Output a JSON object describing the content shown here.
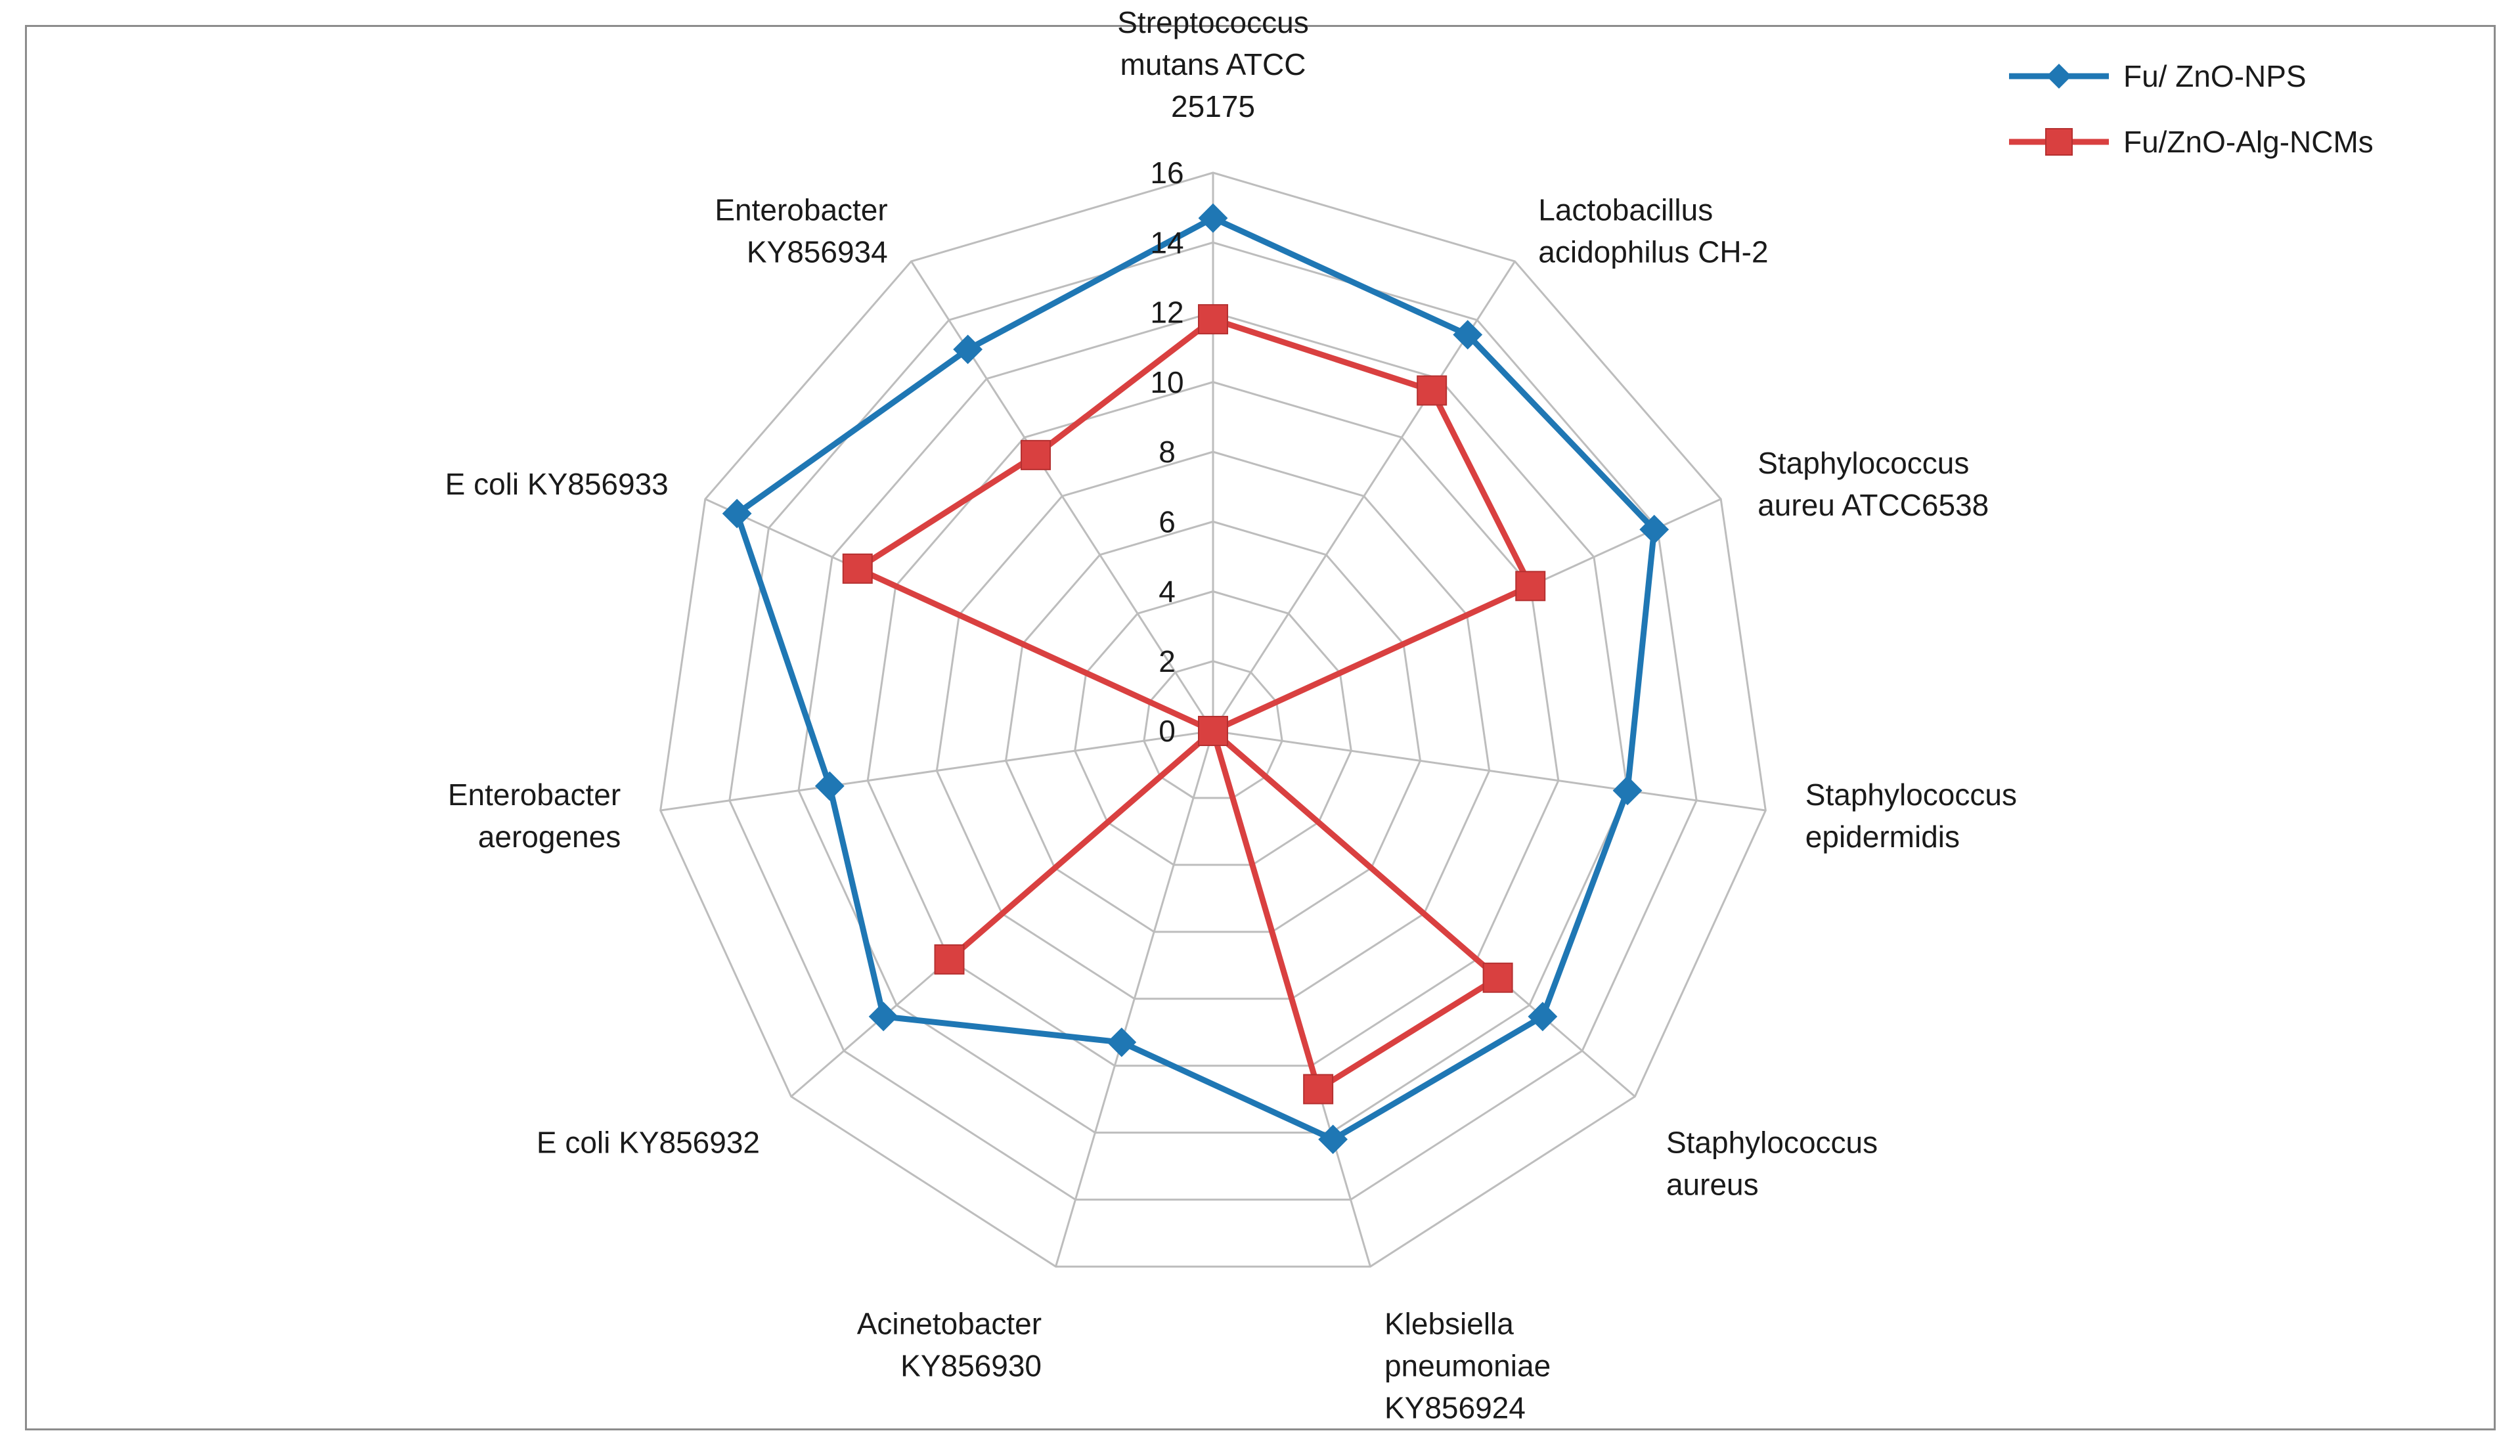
{
  "chart_data": {
    "type": "radar",
    "title": "",
    "categories": [
      "Streptococcus mutans ATCC 25175",
      "Lactobacillus acidophilus CH-2",
      "Staphylococcus aureu ATCC6538",
      "Staphylococcus epidermidis",
      "Staphylococcus aureus",
      "Klebsiella pneumoniae KY856924",
      "Acinetobacter KY856930",
      "E coli KY856932",
      "Enterobacter aerogenes",
      "E coli KY856933",
      "Enterobacter KY856934"
    ],
    "category_lines": [
      [
        "Streptococcus",
        "mutans ATCC",
        "25175"
      ],
      [
        "Lactobacillus",
        "acidophilus CH-2"
      ],
      [
        "Staphylococcus",
        "aureu ATCC6538"
      ],
      [
        "Staphylococcus",
        "epidermidis"
      ],
      [
        "Staphylococcus",
        "aureus"
      ],
      [
        "Klebsiella",
        "pneumoniae",
        "KY856924"
      ],
      [
        "Acinetobacter",
        "KY856930"
      ],
      [
        "E coli KY856932"
      ],
      [
        "Enterobacter",
        "aerogenes"
      ],
      [
        "E coli KY856933"
      ],
      [
        "Enterobacter",
        "KY856934"
      ]
    ],
    "series": [
      {
        "name": "Fu/ ZnO-NPS",
        "color": "#1f77b4",
        "marker": "diamond",
        "values": [
          14.7,
          13.5,
          13.9,
          12.0,
          12.5,
          12.2,
          9.3,
          12.5,
          11.1,
          15.0,
          13.0
        ]
      },
      {
        "name": "Fu/ZnO-Alg-NCMs",
        "color": "#d94040",
        "marker": "square",
        "values": [
          11.8,
          11.6,
          10.0,
          0,
          10.8,
          10.7,
          0,
          10.0,
          0,
          11.2,
          9.4
        ]
      }
    ],
    "rlim": [
      0,
      16
    ],
    "ticks": [
      0,
      2,
      4,
      6,
      8,
      10,
      12,
      14,
      16
    ],
    "tick_labels": [
      "0",
      "2",
      "4",
      "6",
      "8",
      "10",
      "12",
      "14",
      "16"
    ],
    "grid": true,
    "legend_position": "top-right"
  }
}
